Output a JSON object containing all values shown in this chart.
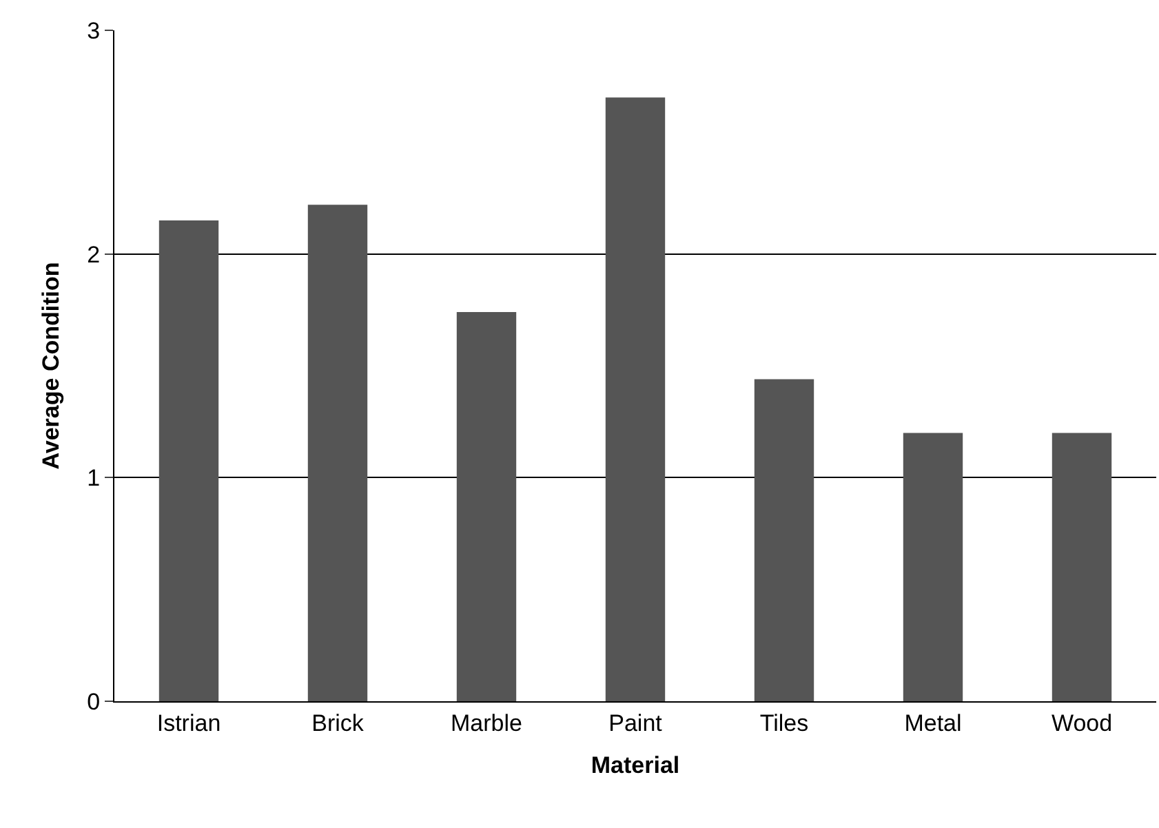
{
  "chart_data": {
    "type": "bar",
    "xlabel": "Material",
    "ylabel": "Average Condition",
    "categories": [
      "Istrian",
      "Brick",
      "Marble",
      "Paint",
      "Tiles",
      "Metal",
      "Wood"
    ],
    "values": [
      2.15,
      2.22,
      1.74,
      2.7,
      1.44,
      1.2,
      1.2
    ],
    "color": "#555555",
    "ylim": [
      0,
      3
    ],
    "yticks": [
      0,
      1,
      2,
      3
    ],
    "grid": "y"
  }
}
